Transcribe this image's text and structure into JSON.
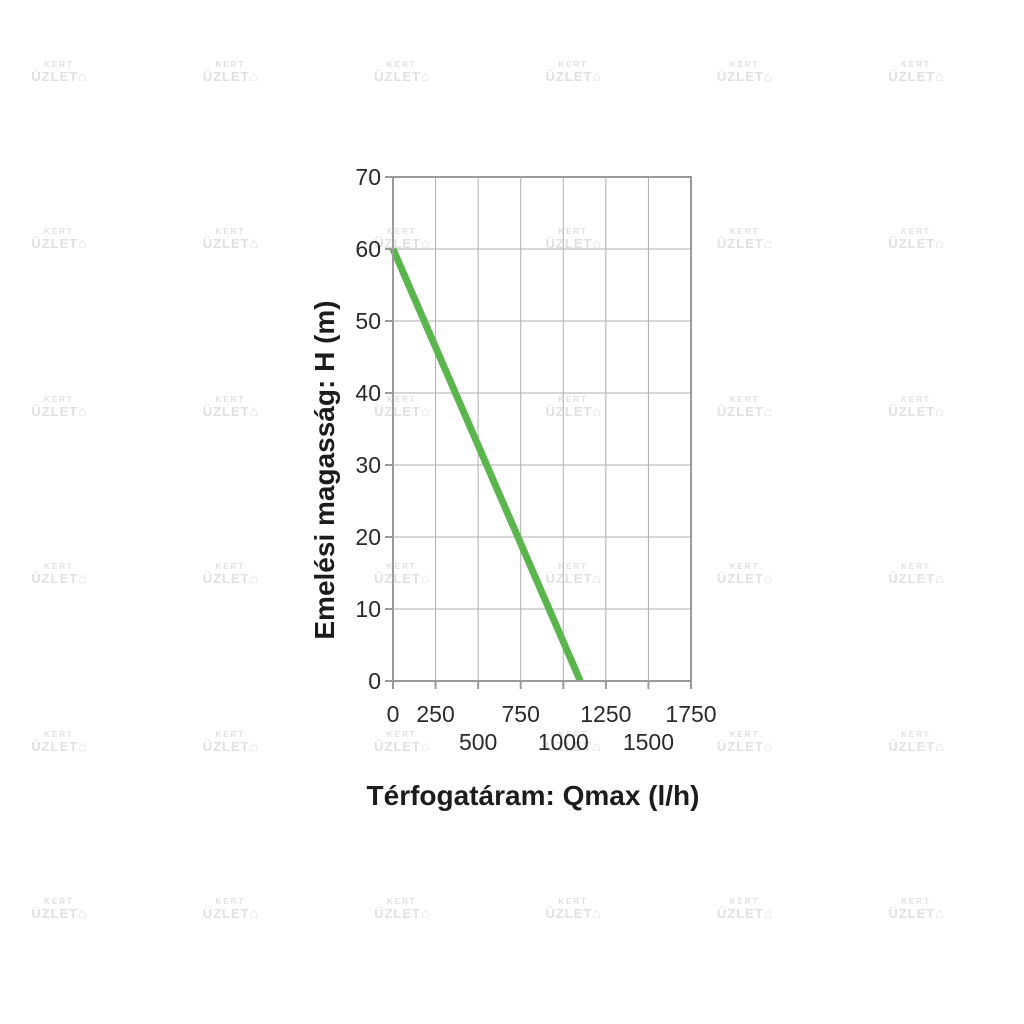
{
  "chart_data": {
    "type": "line",
    "title": "",
    "xlabel": "Térfogatáram: Qmax (l/h)",
    "ylabel": "Emelési magasság: H (m)",
    "xlim": [
      0,
      1750
    ],
    "ylim": [
      0,
      70
    ],
    "grid": true,
    "legend": "none",
    "xticks": [
      {
        "value": 0,
        "label": "0",
        "row": 1
      },
      {
        "value": 250,
        "label": "250",
        "row": 1
      },
      {
        "value": 500,
        "label": "500",
        "row": 2
      },
      {
        "value": 750,
        "label": "750",
        "row": 1
      },
      {
        "value": 1000,
        "label": "1000",
        "row": 2
      },
      {
        "value": 1250,
        "label": "1250",
        "row": 1
      },
      {
        "value": 1500,
        "label": "1500",
        "row": 2
      },
      {
        "value": 1750,
        "label": "1750",
        "row": 1
      }
    ],
    "yticks": [
      {
        "value": 0,
        "label": "0"
      },
      {
        "value": 10,
        "label": "10"
      },
      {
        "value": 20,
        "label": "20"
      },
      {
        "value": 30,
        "label": "30"
      },
      {
        "value": 40,
        "label": "40"
      },
      {
        "value": 50,
        "label": "50"
      },
      {
        "value": 60,
        "label": "60"
      },
      {
        "value": 70,
        "label": "70"
      }
    ],
    "series": [
      {
        "name": "pump-curve",
        "color": "#5bb54d",
        "points": [
          [
            0,
            60
          ],
          [
            1100,
            0
          ]
        ]
      }
    ]
  },
  "style_colors": {
    "frame": "#9a9a9a",
    "grid": "#aeaeae",
    "tick_text": "#2a2a2a",
    "curve_green": "#5bb54d",
    "watermark": "#e0e0e0"
  },
  "watermark": {
    "top": "KERT",
    "bottom": "ÜZLET",
    "house_icon": "⌂",
    "columns": 6,
    "rows": 6
  }
}
